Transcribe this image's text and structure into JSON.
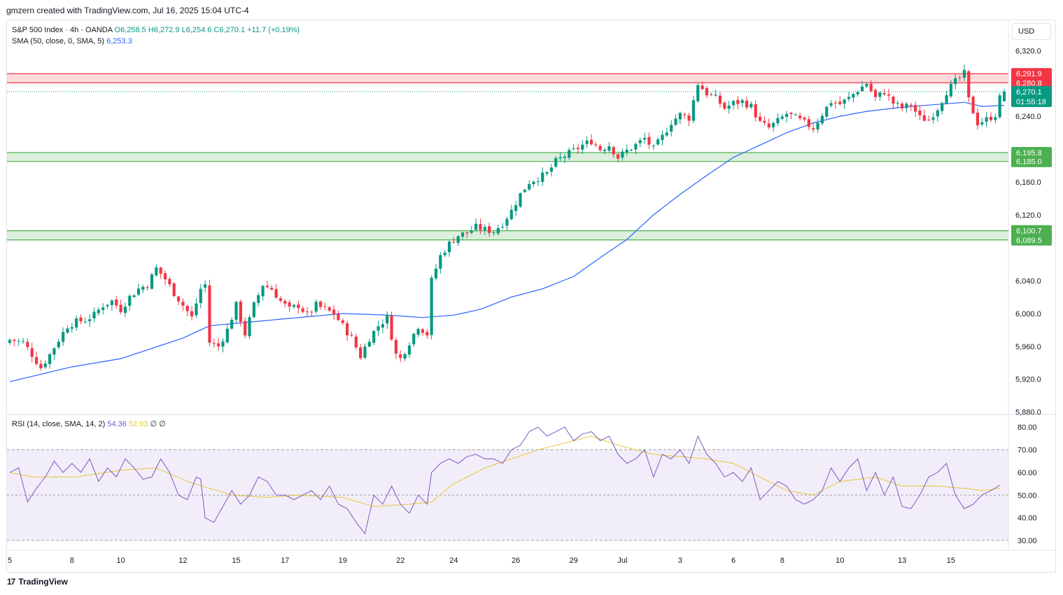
{
  "credit": "gmzern created with TradingView.com, Jul 16, 2025 15:04 UTC-4",
  "legend": {
    "symbol": "S&P 500 Index · 4h · OANDA",
    "open": "O6,258.5",
    "high": "H6,272.9",
    "low": "L6,254.6",
    "close": "C6,270.1",
    "change": "+11.7 (+0.19%)",
    "sma_label": "SMA (50, close, 0, SMA, 5)",
    "sma_value": "6,253.3"
  },
  "rsi_legend": {
    "label": "RSI (14, close, SMA, 14, 2)",
    "rsi_value": "54.36",
    "rsi_sma_value": "52.93",
    "extra1": "∅",
    "extra2": "∅"
  },
  "currency": "USD",
  "footer": {
    "brand": "TradingView",
    "logo_mark": "17"
  },
  "colors": {
    "up": "#089981",
    "down": "#f23645",
    "sma": "#2962ff",
    "rsi": "#7e57c2",
    "rsi_sma": "#e8c53a",
    "resistance_zone": "#f23645",
    "support_zone": "#4caf50"
  },
  "chart_data": {
    "type": "candlestick",
    "price_axis": {
      "ticks": [
        "6,320.0",
        "6,240.0",
        "6,160.0",
        "6,120.0",
        "6,040.0",
        "6,000.0",
        "5,960.0",
        "5,920.0",
        "5,880.0"
      ],
      "tick_values": [
        6320,
        6240,
        6160,
        6120,
        6040,
        6000,
        5960,
        5920,
        5880
      ],
      "range": [
        5878,
        6356
      ]
    },
    "x_axis": {
      "ticks": [
        "5",
        "8",
        "10",
        "12",
        "15",
        "17",
        "19",
        "22",
        "24",
        "26",
        "29",
        "Jul",
        "3",
        "6",
        "8",
        "10",
        "13",
        "15"
      ],
      "tick_bars": [
        0,
        14,
        25,
        39,
        51,
        62,
        75,
        88,
        100,
        114,
        127,
        138,
        151,
        163,
        174,
        187,
        201,
        212
      ]
    },
    "price_labels": [
      {
        "text": "6,291.9",
        "value": 6291.9,
        "kind": "resistance"
      },
      {
        "text": "6,280.8",
        "value": 6280.8,
        "kind": "resistance"
      },
      {
        "text": "6,270.1",
        "value": 6270.1,
        "kind": "last",
        "sub": "01:55:18"
      },
      {
        "text": "6,195.8",
        "value": 6195.8,
        "kind": "support"
      },
      {
        "text": "6,185.0",
        "value": 6185.0,
        "kind": "support"
      },
      {
        "text": "6,100.7",
        "value": 6100.7,
        "kind": "support"
      },
      {
        "text": "6,089.5",
        "value": 6089.5,
        "kind": "support"
      }
    ],
    "zones": [
      {
        "kind": "resistance",
        "low": 6280.8,
        "high": 6291.9
      },
      {
        "kind": "support",
        "low": 6185.0,
        "high": 6195.8
      },
      {
        "kind": "support",
        "low": 6089.5,
        "high": 6100.7
      }
    ],
    "last_price": 6270.1,
    "anchors": [
      [
        0,
        5968
      ],
      [
        3,
        5965
      ],
      [
        5,
        5950
      ],
      [
        7,
        5934
      ],
      [
        9,
        5950
      ],
      [
        11,
        5968
      ],
      [
        13,
        5985
      ],
      [
        15,
        5990
      ],
      [
        17,
        5992
      ],
      [
        19,
        5998
      ],
      [
        21,
        6010
      ],
      [
        23,
        6015
      ],
      [
        25,
        6005
      ],
      [
        27,
        6020
      ],
      [
        29,
        6030
      ],
      [
        31,
        6035
      ],
      [
        33,
        6055
      ],
      [
        35,
        6042
      ],
      [
        37,
        6025
      ],
      [
        39,
        6010
      ],
      [
        41,
        5995
      ],
      [
        43,
        6030
      ],
      [
        44,
        6035
      ],
      [
        45,
        5965
      ],
      [
        47,
        5960
      ],
      [
        49,
        5980
      ],
      [
        51,
        6010
      ],
      [
        53,
        5975
      ],
      [
        55,
        6010
      ],
      [
        57,
        6035
      ],
      [
        59,
        6030
      ],
      [
        61,
        6015
      ],
      [
        63,
        6005
      ],
      [
        65,
        6010
      ],
      [
        67,
        5998
      ],
      [
        69,
        6010
      ],
      [
        71,
        6005
      ],
      [
        73,
        6000
      ],
      [
        75,
        5985
      ],
      [
        77,
        5970
      ],
      [
        79,
        5948
      ],
      [
        81,
        5970
      ],
      [
        83,
        5985
      ],
      [
        85,
        5995
      ],
      [
        87,
        5950
      ],
      [
        88,
        5945
      ],
      [
        90,
        5965
      ],
      [
        92,
        5985
      ],
      [
        94,
        5975
      ],
      [
        95,
        6040
      ],
      [
        97,
        6070
      ],
      [
        99,
        6085
      ],
      [
        101,
        6095
      ],
      [
        103,
        6098
      ],
      [
        105,
        6105
      ],
      [
        107,
        6102
      ],
      [
        109,
        6100
      ],
      [
        111,
        6110
      ],
      [
        113,
        6125
      ],
      [
        115,
        6145
      ],
      [
        117,
        6160
      ],
      [
        119,
        6165
      ],
      [
        121,
        6170
      ],
      [
        123,
        6185
      ],
      [
        125,
        6192
      ],
      [
        127,
        6198
      ],
      [
        129,
        6205
      ],
      [
        131,
        6210
      ],
      [
        133,
        6200
      ],
      [
        135,
        6205
      ],
      [
        137,
        6190
      ],
      [
        139,
        6198
      ],
      [
        141,
        6205
      ],
      [
        143,
        6213
      ],
      [
        145,
        6200
      ],
      [
        147,
        6215
      ],
      [
        149,
        6233
      ],
      [
        151,
        6242
      ],
      [
        153,
        6238
      ],
      [
        155,
        6280
      ],
      [
        157,
        6268
      ],
      [
        159,
        6262
      ],
      [
        161,
        6250
      ],
      [
        163,
        6256
      ],
      [
        165,
        6258
      ],
      [
        167,
        6252
      ],
      [
        169,
        6232
      ],
      [
        171,
        6226
      ],
      [
        173,
        6234
      ],
      [
        175,
        6243
      ],
      [
        177,
        6238
      ],
      [
        179,
        6232
      ],
      [
        181,
        6226
      ],
      [
        183,
        6243
      ],
      [
        185,
        6258
      ],
      [
        187,
        6255
      ],
      [
        189,
        6262
      ],
      [
        191,
        6272
      ],
      [
        193,
        6280
      ],
      [
        195,
        6262
      ],
      [
        197,
        6270
      ],
      [
        199,
        6256
      ],
      [
        201,
        6250
      ],
      [
        203,
        6254
      ],
      [
        205,
        6238
      ],
      [
        207,
        6236
      ],
      [
        209,
        6250
      ],
      [
        211,
        6270
      ],
      [
        213,
        6282
      ],
      [
        215,
        6292
      ],
      [
        216,
        6260
      ],
      [
        218,
        6232
      ],
      [
        220,
        6236
      ],
      [
        222,
        6242
      ],
      [
        223,
        6262
      ],
      [
        224,
        6270.1
      ]
    ],
    "sma_anchors": [
      [
        0,
        5917
      ],
      [
        14,
        5935
      ],
      [
        25,
        5945
      ],
      [
        39,
        5970
      ],
      [
        45,
        5985
      ],
      [
        55,
        5990
      ],
      [
        65,
        5995
      ],
      [
        75,
        6000
      ],
      [
        85,
        5998
      ],
      [
        93,
        5995
      ],
      [
        100,
        5998
      ],
      [
        106,
        6005
      ],
      [
        113,
        6020
      ],
      [
        120,
        6030
      ],
      [
        127,
        6045
      ],
      [
        133,
        6068
      ],
      [
        139,
        6090
      ],
      [
        145,
        6120
      ],
      [
        151,
        6145
      ],
      [
        157,
        6168
      ],
      [
        163,
        6190
      ],
      [
        169,
        6205
      ],
      [
        175,
        6220
      ],
      [
        181,
        6232
      ],
      [
        187,
        6240
      ],
      [
        193,
        6246
      ],
      [
        201,
        6251
      ],
      [
        208,
        6254
      ],
      [
        215,
        6257
      ],
      [
        219,
        6252
      ],
      [
        224,
        6253.3
      ]
    ],
    "rsi": {
      "axis_ticks": [
        "80.00",
        "70.00",
        "60.00",
        "50.00",
        "40.00",
        "30.00"
      ],
      "tick_values": [
        80,
        70,
        60,
        50,
        40,
        30
      ],
      "bands": [
        30,
        50,
        70
      ],
      "range": [
        26,
        85
      ],
      "rsi_anchors": [
        [
          0,
          60
        ],
        [
          2,
          62
        ],
        [
          4,
          47
        ],
        [
          6,
          53
        ],
        [
          8,
          58
        ],
        [
          10,
          65
        ],
        [
          12,
          60
        ],
        [
          14,
          64
        ],
        [
          16,
          60
        ],
        [
          18,
          66
        ],
        [
          20,
          56
        ],
        [
          22,
          62
        ],
        [
          24,
          58
        ],
        [
          26,
          66
        ],
        [
          28,
          62
        ],
        [
          30,
          57
        ],
        [
          32,
          58
        ],
        [
          34,
          66
        ],
        [
          36,
          60
        ],
        [
          38,
          50
        ],
        [
          40,
          48
        ],
        [
          42,
          58
        ],
        [
          43,
          57
        ],
        [
          44,
          40
        ],
        [
          46,
          38
        ],
        [
          48,
          45
        ],
        [
          50,
          52
        ],
        [
          52,
          46
        ],
        [
          54,
          50
        ],
        [
          56,
          58
        ],
        [
          58,
          56
        ],
        [
          60,
          50
        ],
        [
          62,
          50
        ],
        [
          64,
          48
        ],
        [
          66,
          50
        ],
        [
          68,
          52
        ],
        [
          70,
          48
        ],
        [
          72,
          54
        ],
        [
          74,
          46
        ],
        [
          76,
          44
        ],
        [
          78,
          38
        ],
        [
          80,
          33
        ],
        [
          82,
          50
        ],
        [
          84,
          46
        ],
        [
          86,
          54
        ],
        [
          88,
          46
        ],
        [
          90,
          42
        ],
        [
          92,
          50
        ],
        [
          94,
          46
        ],
        [
          95,
          60
        ],
        [
          97,
          64
        ],
        [
          99,
          66
        ],
        [
          101,
          64
        ],
        [
          103,
          67
        ],
        [
          105,
          68
        ],
        [
          107,
          66
        ],
        [
          109,
          66
        ],
        [
          111,
          64
        ],
        [
          113,
          70
        ],
        [
          115,
          72
        ],
        [
          117,
          78
        ],
        [
          119,
          80
        ],
        [
          121,
          76
        ],
        [
          123,
          78
        ],
        [
          125,
          80
        ],
        [
          127,
          74
        ],
        [
          129,
          77
        ],
        [
          131,
          78
        ],
        [
          133,
          74
        ],
        [
          135,
          76
        ],
        [
          137,
          68
        ],
        [
          139,
          64
        ],
        [
          141,
          66
        ],
        [
          143,
          70
        ],
        [
          145,
          58
        ],
        [
          147,
          68
        ],
        [
          149,
          66
        ],
        [
          151,
          70
        ],
        [
          153,
          64
        ],
        [
          155,
          76
        ],
        [
          157,
          68
        ],
        [
          159,
          64
        ],
        [
          161,
          58
        ],
        [
          163,
          60
        ],
        [
          165,
          56
        ],
        [
          167,
          62
        ],
        [
          169,
          48
        ],
        [
          171,
          52
        ],
        [
          173,
          56
        ],
        [
          175,
          54
        ],
        [
          177,
          48
        ],
        [
          179,
          46
        ],
        [
          181,
          48
        ],
        [
          183,
          52
        ],
        [
          185,
          62
        ],
        [
          187,
          56
        ],
        [
          189,
          62
        ],
        [
          191,
          66
        ],
        [
          193,
          52
        ],
        [
          195,
          60
        ],
        [
          197,
          50
        ],
        [
          199,
          58
        ],
        [
          201,
          45
        ],
        [
          203,
          44
        ],
        [
          205,
          50
        ],
        [
          207,
          58
        ],
        [
          209,
          60
        ],
        [
          211,
          64
        ],
        [
          213,
          50
        ],
        [
          215,
          44
        ],
        [
          217,
          46
        ],
        [
          219,
          50
        ],
        [
          221,
          52
        ],
        [
          223,
          54.36
        ]
      ],
      "sma_anchors": [
        [
          0,
          60
        ],
        [
          5,
          58
        ],
        [
          15,
          58
        ],
        [
          25,
          61
        ],
        [
          33,
          62
        ],
        [
          40,
          56
        ],
        [
          45,
          53
        ],
        [
          50,
          50
        ],
        [
          58,
          49
        ],
        [
          65,
          50
        ],
        [
          75,
          49
        ],
        [
          82,
          45
        ],
        [
          90,
          46
        ],
        [
          95,
          47
        ],
        [
          100,
          55
        ],
        [
          107,
          62
        ],
        [
          113,
          66
        ],
        [
          119,
          70
        ],
        [
          125,
          73
        ],
        [
          131,
          76
        ],
        [
          137,
          72
        ],
        [
          145,
          68
        ],
        [
          151,
          67
        ],
        [
          157,
          66
        ],
        [
          163,
          64
        ],
        [
          169,
          58
        ],
        [
          175,
          52
        ],
        [
          181,
          50
        ],
        [
          187,
          56
        ],
        [
          195,
          58
        ],
        [
          201,
          54
        ],
        [
          209,
          54
        ],
        [
          215,
          53
        ],
        [
          219,
          52
        ],
        [
          223,
          52.93
        ]
      ]
    }
  }
}
